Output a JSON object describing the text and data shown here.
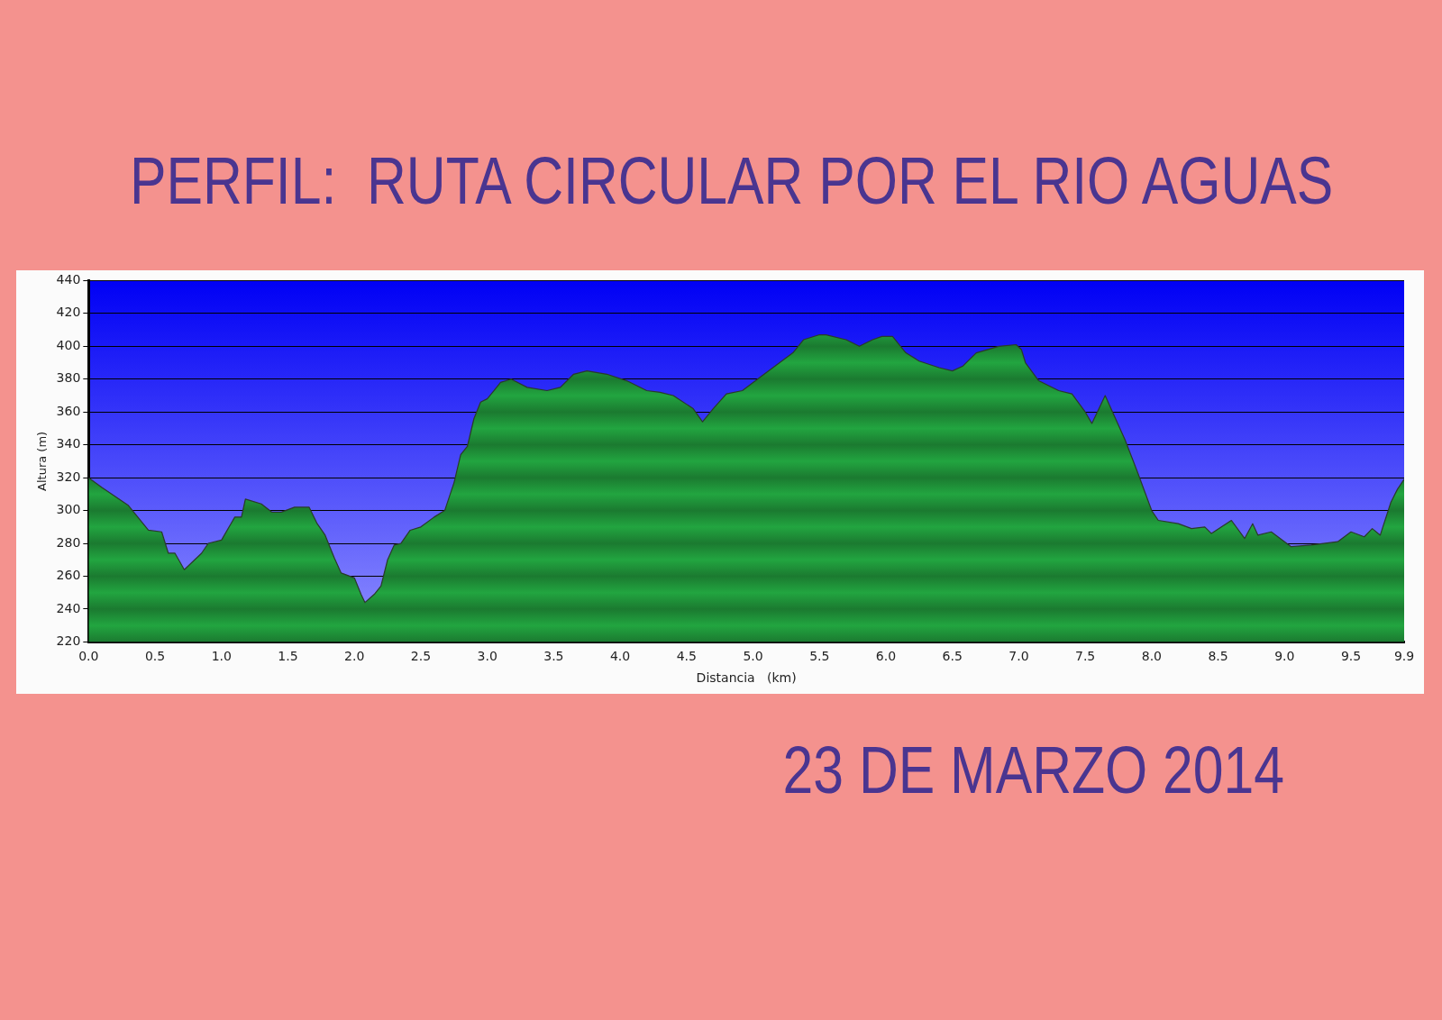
{
  "chart_data": {
    "type": "area",
    "title": "PERFIL:  RUTA CIRCULAR POR EL RIO AGUAS",
    "xlabel": "Distancia   (km)",
    "ylabel": "Altura (m)",
    "annotations": [
      "23 DE MARZO 2014"
    ],
    "xlim": [
      0,
      9.9
    ],
    "ylim": [
      220,
      440
    ],
    "xticks": [
      {
        "value": 0,
        "label": "0.0"
      },
      0.5,
      {
        "value": 1,
        "label": "1.0"
      },
      1.5,
      {
        "value": 2,
        "label": "2.0"
      },
      2.5,
      {
        "value": 3,
        "label": "3.0"
      },
      3.5,
      {
        "value": 4,
        "label": "4.0"
      },
      4.5,
      {
        "value": 5,
        "label": "5.0"
      },
      5.5,
      {
        "value": 6,
        "label": "6.0"
      },
      6.5,
      {
        "value": 7,
        "label": "7.0"
      },
      7.5,
      {
        "value": 8,
        "label": "8.0"
      },
      8.5,
      {
        "value": 9,
        "label": "9.0"
      },
      9.5,
      9.9
    ],
    "yticks": [
      220,
      240,
      260,
      280,
      300,
      320,
      340,
      360,
      380,
      400,
      420,
      440
    ],
    "grid": "y",
    "legend": false,
    "marker": "none",
    "series": [
      {
        "color": "#22a540",
        "x": [
          0,
          0.1,
          0.3,
          0.45,
          0.55,
          0.6,
          0.65,
          0.72,
          0.85,
          0.9,
          1.0,
          1.05,
          1.1,
          1.15,
          1.18,
          1.3,
          1.38,
          1.45,
          1.55,
          1.66,
          1.72,
          1.78,
          1.85,
          1.9,
          2.0,
          2.05,
          2.08,
          2.15,
          2.2,
          2.25,
          2.3,
          2.35,
          2.42,
          2.5,
          2.6,
          2.68,
          2.75,
          2.8,
          2.85,
          2.9,
          2.95,
          3.0,
          3.05,
          3.1,
          3.18,
          3.3,
          3.45,
          3.55,
          3.65,
          3.75,
          3.9,
          4.05,
          4.2,
          4.3,
          4.4,
          4.55,
          4.62,
          4.7,
          4.8,
          4.92,
          5.05,
          5.15,
          5.3,
          5.38,
          5.5,
          5.55,
          5.7,
          5.8,
          5.9,
          5.97,
          6.05,
          6.15,
          6.25,
          6.4,
          6.5,
          6.58,
          6.68,
          6.85,
          6.98,
          7.02,
          7.05,
          7.15,
          7.3,
          7.4,
          7.5,
          7.55,
          7.65,
          7.8,
          7.9,
          8.0,
          8.05,
          8.2,
          8.3,
          8.4,
          8.45,
          8.6,
          8.7,
          8.76,
          8.8,
          8.9,
          9.0,
          9.05,
          9.2,
          9.4,
          9.5,
          9.6,
          9.66,
          9.72,
          9.8,
          9.85,
          9.9
        ],
        "values": [
          320,
          314,
          303,
          288,
          287,
          274,
          274,
          264,
          274,
          280,
          282,
          289,
          296,
          296,
          307,
          304,
          299,
          299,
          302,
          302,
          292,
          285,
          271,
          262,
          259,
          249,
          244,
          249,
          254,
          270,
          279,
          280,
          288,
          290,
          296,
          300,
          317,
          334,
          339,
          356,
          366,
          368,
          373,
          378,
          380,
          375,
          373,
          375,
          383,
          385,
          383,
          379,
          373,
          372,
          370,
          362,
          354,
          362,
          371,
          373,
          381,
          387,
          396,
          404,
          407,
          407,
          404,
          400,
          404,
          406,
          406,
          396,
          391,
          387,
          385,
          388,
          396,
          400,
          401,
          398,
          390,
          379,
          373,
          371,
          360,
          353,
          370,
          343,
          322,
          300,
          294,
          292,
          289,
          290,
          286,
          294,
          283,
          292,
          285,
          287,
          281,
          278,
          279,
          281,
          287,
          284,
          289,
          285,
          305,
          313,
          319
        ]
      }
    ]
  }
}
